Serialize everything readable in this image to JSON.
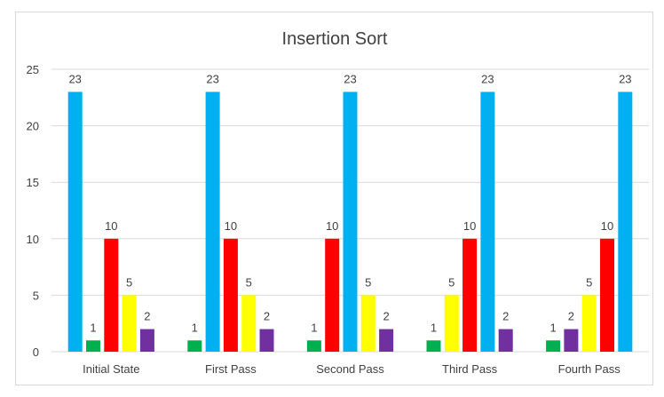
{
  "chart_data": {
    "type": "bar",
    "title": "Insertion Sort",
    "xlabel": "",
    "ylabel": "",
    "ylim": [
      0,
      25
    ],
    "yticks": [
      0,
      5,
      10,
      15,
      20,
      25
    ],
    "grid": true,
    "legend": "none",
    "categories": [
      "Initial State",
      "First Pass",
      "Second Pass",
      "Third Pass",
      "Fourth Pass"
    ],
    "bars": [
      [
        {
          "value": 23,
          "color": "#00b0f0"
        },
        {
          "value": 1,
          "color": "#00b050"
        },
        {
          "value": 10,
          "color": "#ff0000"
        },
        {
          "value": 5,
          "color": "#ffff00"
        },
        {
          "value": 2,
          "color": "#7030a0"
        }
      ],
      [
        {
          "value": 1,
          "color": "#00b050"
        },
        {
          "value": 23,
          "color": "#00b0f0"
        },
        {
          "value": 10,
          "color": "#ff0000"
        },
        {
          "value": 5,
          "color": "#ffff00"
        },
        {
          "value": 2,
          "color": "#7030a0"
        }
      ],
      [
        {
          "value": 1,
          "color": "#00b050"
        },
        {
          "value": 10,
          "color": "#ff0000"
        },
        {
          "value": 23,
          "color": "#00b0f0"
        },
        {
          "value": 5,
          "color": "#ffff00"
        },
        {
          "value": 2,
          "color": "#7030a0"
        }
      ],
      [
        {
          "value": 1,
          "color": "#00b050"
        },
        {
          "value": 5,
          "color": "#ffff00"
        },
        {
          "value": 10,
          "color": "#ff0000"
        },
        {
          "value": 23,
          "color": "#00b0f0"
        },
        {
          "value": 2,
          "color": "#7030a0"
        }
      ],
      [
        {
          "value": 1,
          "color": "#00b050"
        },
        {
          "value": 2,
          "color": "#7030a0"
        },
        {
          "value": 5,
          "color": "#ffff00"
        },
        {
          "value": 10,
          "color": "#ff0000"
        },
        {
          "value": 23,
          "color": "#00b0f0"
        }
      ]
    ]
  }
}
